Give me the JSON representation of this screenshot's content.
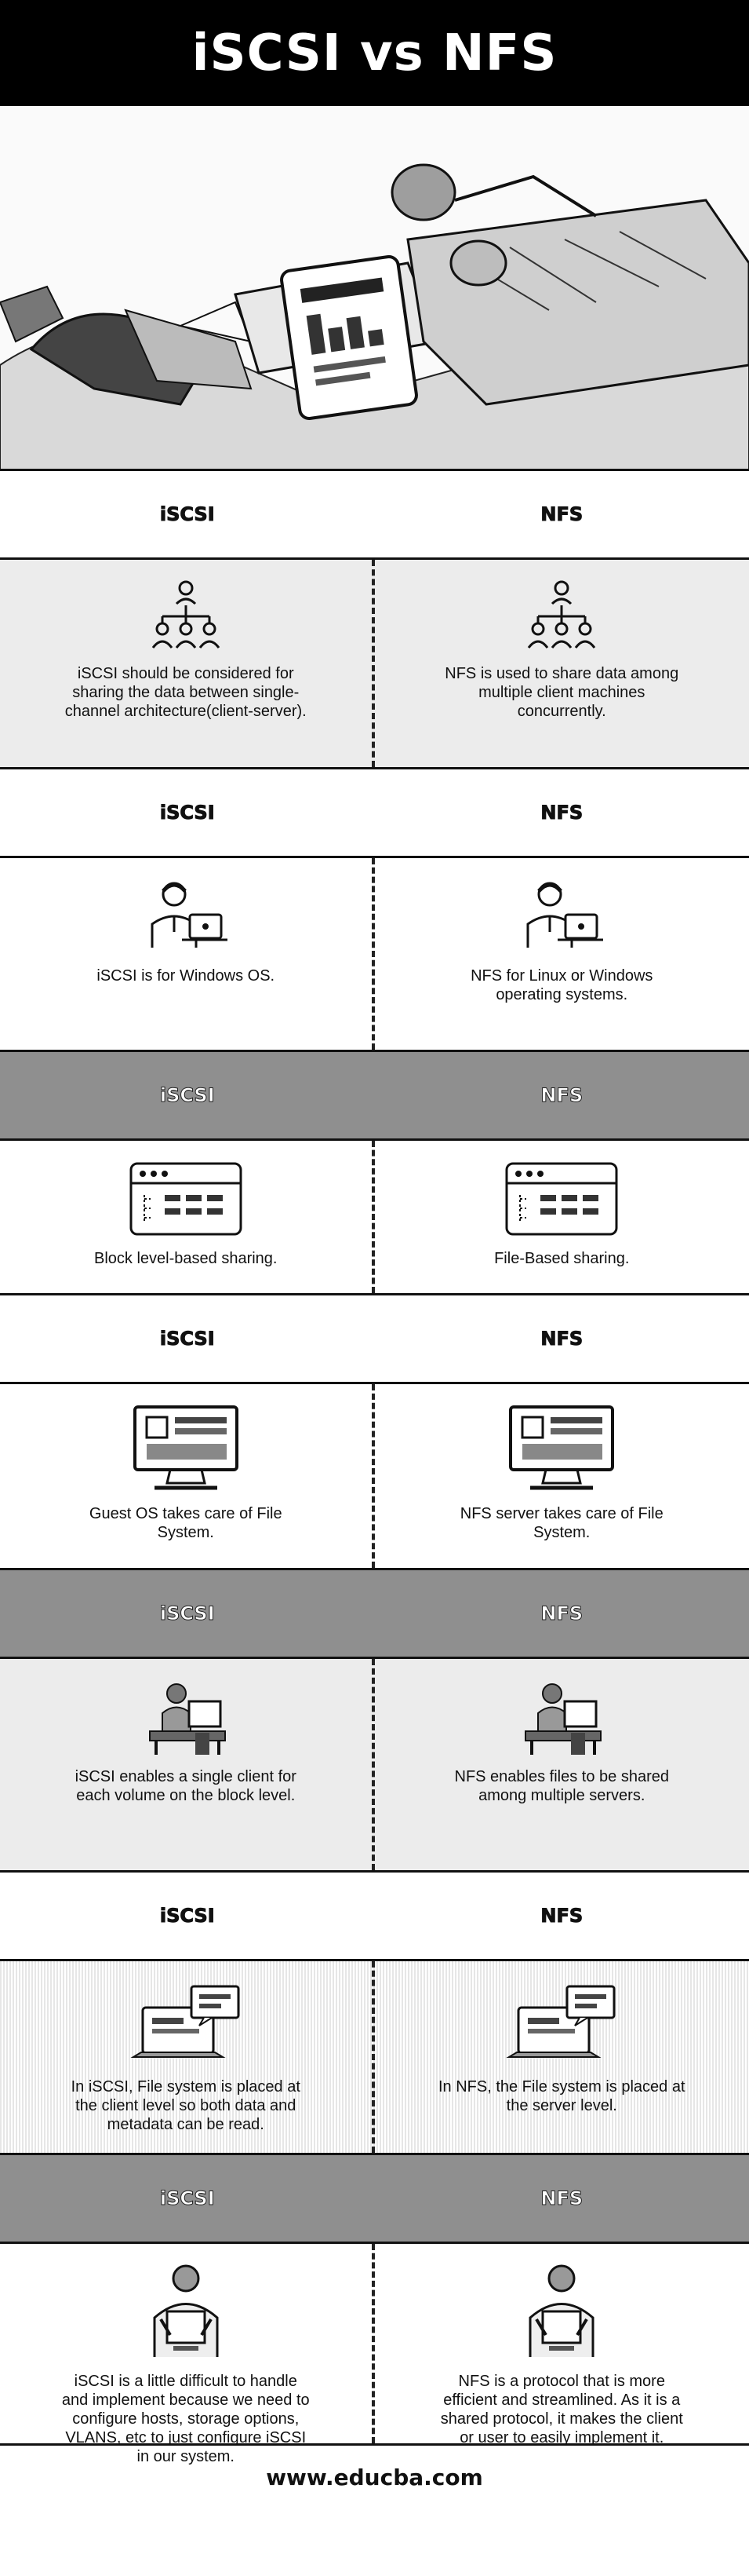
{
  "title": "iSCSI vs NFS",
  "labels": {
    "left": "iSCSI",
    "right": "NFS"
  },
  "sections": [
    {
      "left": "iSCSI should be considered for sharing the data between single-channel architecture(client-server).",
      "right": "NFS is used to share data among multiple client machines concurrently.",
      "left_icon": "hierarchy-team-icon",
      "right_icon": "hierarchy-team-icon"
    },
    {
      "left": "iSCSI is for Windows OS.",
      "right": "NFS for Linux or Windows operating systems.",
      "left_icon": "person-laptop-icon",
      "right_icon": "person-laptop-icon"
    },
    {
      "left": "Block level-based sharing.",
      "right": "File-Based sharing.",
      "left_icon": "browser-window-icon",
      "right_icon": "browser-window-icon"
    },
    {
      "left": "Guest OS takes care of File System.",
      "right": "NFS server takes care of File System.",
      "left_icon": "desktop-monitor-icon",
      "right_icon": "desktop-monitor-icon"
    },
    {
      "left": "iSCSI enables a single client for each volume on the block level.",
      "right": "NFS enables files to be shared among multiple servers.",
      "left_icon": "person-at-desk-icon",
      "right_icon": "person-at-desk-icon"
    },
    {
      "left": "In iSCSI, File system is placed at the client level so both data and metadata can be read.",
      "right": "In NFS, the File system is placed at the server level.",
      "left_icon": "laptop-message-icon",
      "right_icon": "laptop-message-icon"
    },
    {
      "left": "iSCSI is a little difficult to handle and implement because we need to configure hosts, storage options, VLANS, etc to just configure iSCSI in our system.",
      "right": "NFS is a protocol that is more efficient and streamlined. As it is a shared protocol, it makes the client or user to easily implement it.",
      "left_icon": "person-computer-topview-icon",
      "right_icon": "person-computer-topview-icon"
    }
  ],
  "footer": "www.educba.com"
}
